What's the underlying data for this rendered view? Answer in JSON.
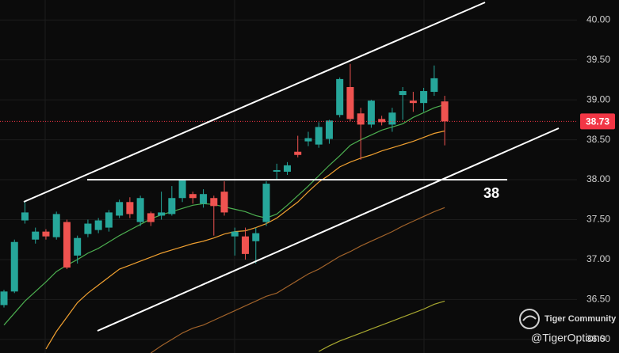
{
  "chart_data": {
    "type": "candlestick",
    "ylim": [
      35.83,
      40.25
    ],
    "yticks": [
      {
        "value": 36.0,
        "label": "36.00"
      },
      {
        "value": 36.5,
        "label": "36.50"
      },
      {
        "value": 37.0,
        "label": "37.00"
      },
      {
        "value": 37.5,
        "label": "37.50"
      },
      {
        "value": 38.0,
        "label": "38.00"
      },
      {
        "value": 38.5,
        "label": "38.50"
      },
      {
        "value": 39.0,
        "label": "39.00"
      },
      {
        "value": 39.5,
        "label": "39.50"
      },
      {
        "value": 40.0,
        "label": "40.00"
      }
    ],
    "grid": true,
    "up_color": "#26a69a",
    "down_color": "#ef5350",
    "open": [
      36.43,
      36.6,
      37.49,
      37.25,
      37.35,
      37.28,
      37.47,
      37.05,
      37.32,
      37.37,
      37.4,
      37.55,
      37.72,
      37.47,
      37.58,
      37.55,
      37.57,
      37.77,
      37.82,
      37.7,
      37.77,
      37.85,
      37.29,
      37.29,
      37.23,
      37.47,
      38.1,
      38.1,
      38.35,
      38.48,
      38.44,
      38.51,
      38.81,
      39.16,
      38.83,
      38.69,
      38.76,
      38.69,
      39.06,
      38.99,
      38.96,
      39.1,
      38.98
    ],
    "high": [
      36.62,
      37.25,
      37.72,
      37.4,
      37.38,
      37.6,
      37.5,
      37.3,
      37.5,
      37.52,
      37.62,
      37.75,
      37.78,
      37.8,
      37.6,
      37.85,
      37.92,
      38.01,
      37.85,
      37.88,
      37.8,
      37.98,
      37.4,
      37.4,
      37.4,
      37.98,
      38.2,
      38.22,
      38.55,
      38.6,
      38.72,
      38.75,
      39.28,
      39.45,
      38.9,
      39.0,
      38.8,
      38.9,
      39.16,
      39.1,
      39.15,
      39.43,
      39.05
    ],
    "low": [
      36.4,
      36.58,
      37.45,
      37.2,
      37.25,
      37.25,
      36.88,
      36.95,
      37.28,
      37.33,
      37.35,
      37.52,
      37.52,
      37.42,
      37.42,
      37.5,
      37.55,
      37.72,
      37.7,
      37.65,
      37.3,
      37.55,
      37.05,
      37.0,
      36.95,
      37.42,
      38.0,
      38.06,
      38.28,
      38.42,
      38.4,
      38.45,
      38.78,
      38.73,
      38.25,
      38.65,
      38.68,
      38.6,
      38.75,
      38.85,
      38.85,
      39.05,
      38.43
    ],
    "close": [
      36.6,
      37.22,
      37.59,
      37.35,
      37.29,
      37.57,
      36.9,
      37.27,
      37.45,
      37.49,
      37.59,
      37.72,
      37.57,
      37.77,
      37.47,
      37.59,
      37.77,
      37.99,
      37.77,
      37.82,
      37.67,
      37.59,
      37.35,
      37.07,
      37.33,
      37.95,
      38.12,
      38.18,
      38.31,
      38.52,
      38.66,
      38.74,
      39.26,
      38.76,
      38.69,
      38.99,
      38.72,
      38.84,
      39.11,
      38.96,
      39.11,
      39.27,
      38.73
    ],
    "series": [
      {
        "color": "#4caf50",
        "values": [
          36.18,
          36.33,
          36.48,
          36.6,
          36.72,
          36.85,
          36.93,
          37.0,
          37.08,
          37.14,
          37.22,
          37.3,
          37.37,
          37.44,
          37.51,
          37.56,
          37.6,
          37.64,
          37.68,
          37.7,
          37.69,
          37.66,
          37.63,
          37.6,
          37.55,
          37.52,
          37.57,
          37.68,
          37.8,
          37.92,
          38.05,
          38.18,
          38.3,
          38.43,
          38.5,
          38.56,
          38.62,
          38.66,
          38.7,
          38.78,
          38.84,
          38.9,
          38.94
        ]
      },
      {
        "color": "#f0a030",
        "values": [
          null,
          null,
          null,
          null,
          35.88,
          36.1,
          36.28,
          36.46,
          36.58,
          36.68,
          36.78,
          36.88,
          36.93,
          36.98,
          37.03,
          37.08,
          37.12,
          37.16,
          37.2,
          37.23,
          37.27,
          37.32,
          37.35,
          37.36,
          37.4,
          37.45,
          37.52,
          37.62,
          37.72,
          37.85,
          37.97,
          38.06,
          38.16,
          38.22,
          38.27,
          38.31,
          38.36,
          38.4,
          38.44,
          38.48,
          38.53,
          38.58,
          38.61
        ]
      },
      {
        "color": "#a0622a",
        "values": [
          null,
          null,
          null,
          null,
          null,
          null,
          null,
          null,
          null,
          null,
          null,
          null,
          null,
          null,
          35.83,
          35.92,
          36.0,
          36.08,
          36.14,
          36.18,
          36.24,
          36.3,
          36.36,
          36.42,
          36.48,
          36.54,
          36.58,
          36.66,
          36.74,
          36.82,
          36.88,
          36.96,
          37.04,
          37.1,
          37.17,
          37.23,
          37.29,
          37.35,
          37.42,
          37.48,
          37.54,
          37.6,
          37.65
        ]
      },
      {
        "color": "#a8a830",
        "values": [
          null,
          null,
          null,
          null,
          null,
          null,
          null,
          null,
          null,
          null,
          null,
          null,
          null,
          null,
          null,
          null,
          null,
          null,
          null,
          null,
          null,
          null,
          null,
          null,
          null,
          null,
          null,
          null,
          null,
          null,
          35.85,
          35.92,
          35.98,
          36.03,
          36.08,
          36.13,
          36.18,
          36.23,
          36.28,
          36.33,
          36.38,
          36.44,
          36.48
        ]
      }
    ],
    "last_price": 38.73,
    "last_price_color": "#f23645",
    "hline": 38,
    "watermark": {
      "brand": "Tiger Community",
      "handle": "@TigerOptions"
    }
  }
}
